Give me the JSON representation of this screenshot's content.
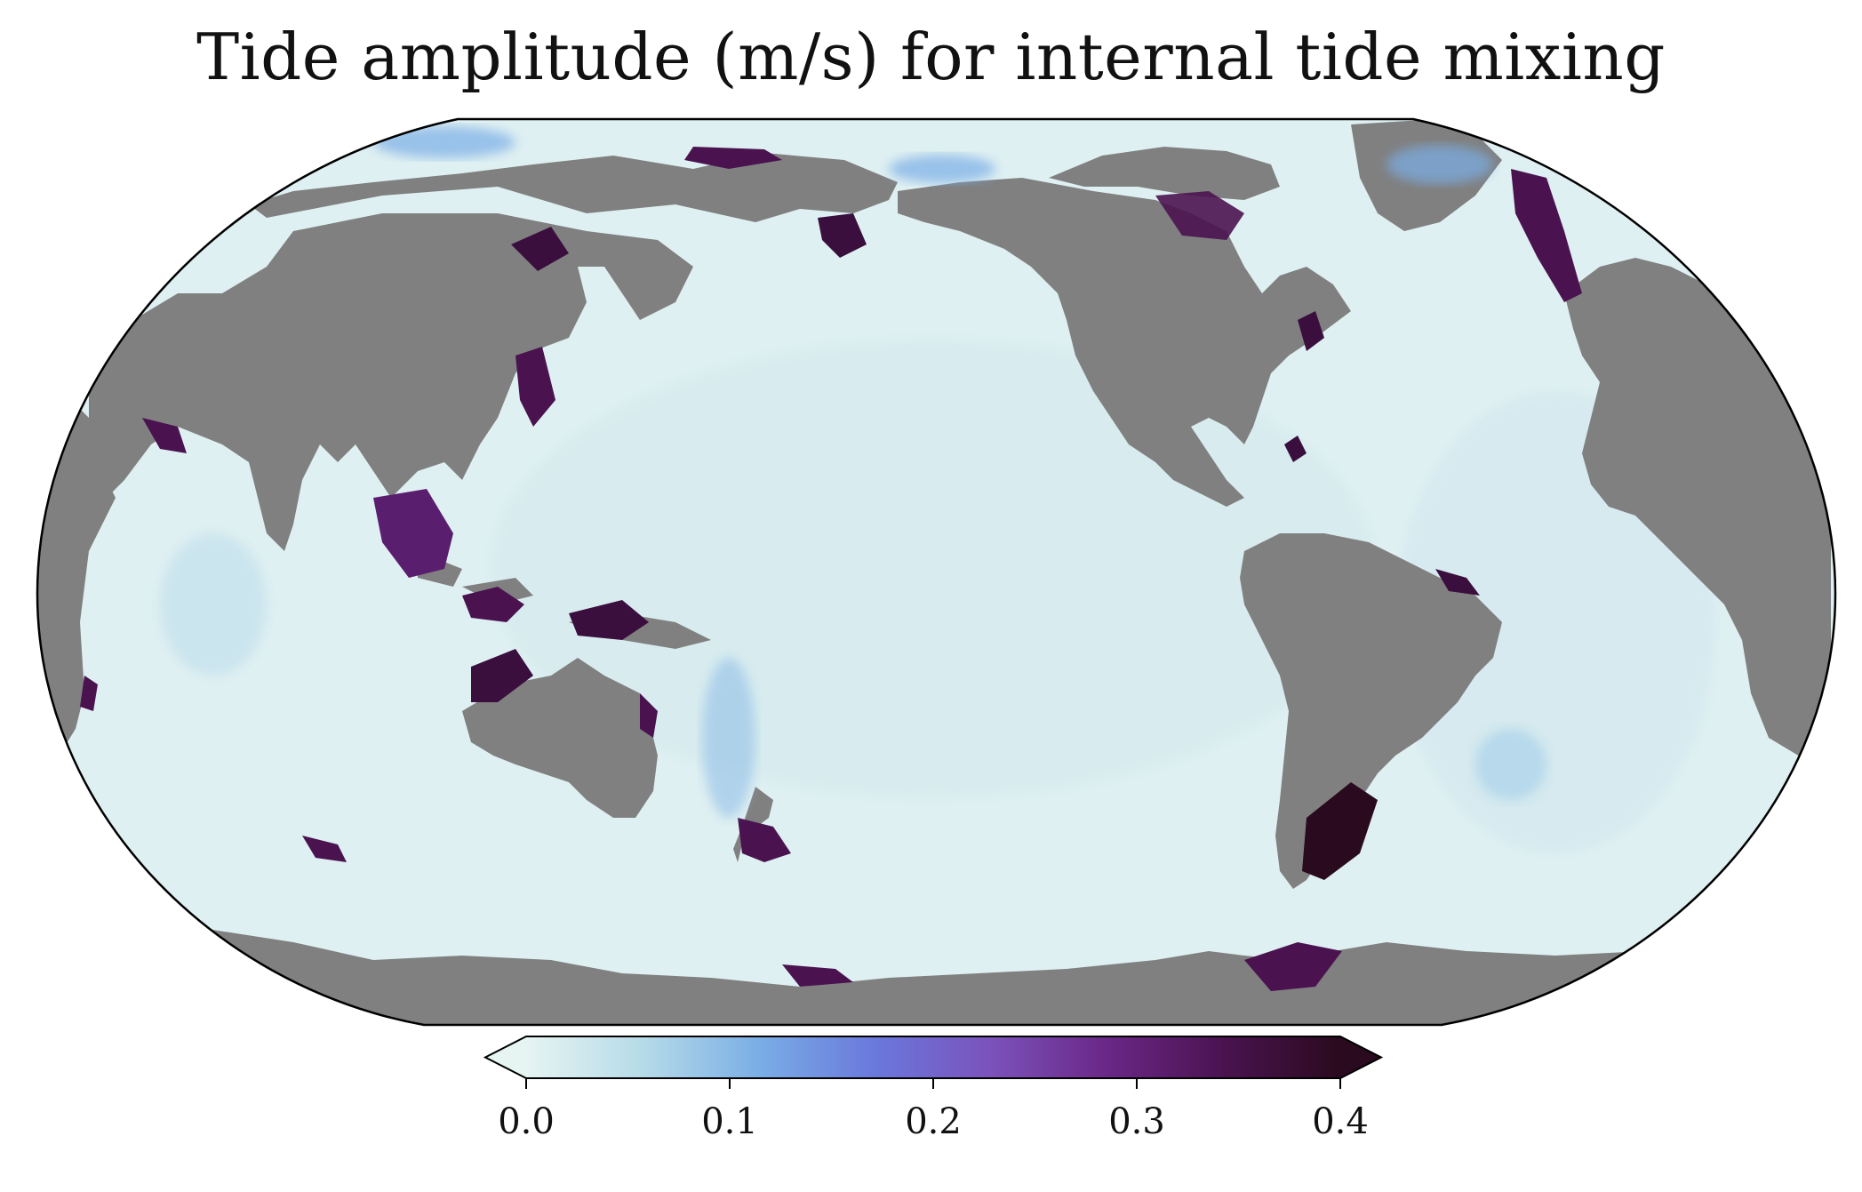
{
  "title": "Tide amplitude (m/s) for internal tide mixing",
  "colors": {
    "land": "#808080",
    "ocean_low": "#dff0f2",
    "ocean_mid": "#b8dbea",
    "cmap_stops": [
      "#e6f4f2",
      "#b6dbe8",
      "#7aaee6",
      "#6a78dc",
      "#7b52bb",
      "#6a2786",
      "#4a1350",
      "#2a0a1e"
    ],
    "outline": "#000000"
  },
  "colorbar": {
    "min": 0.0,
    "max": 0.4,
    "extend": "both",
    "ticks": [
      {
        "value": 0.0,
        "label": "0.0"
      },
      {
        "value": 0.1,
        "label": "0.1"
      },
      {
        "value": 0.2,
        "label": "0.2"
      },
      {
        "value": 0.3,
        "label": "0.3"
      },
      {
        "value": 0.4,
        "label": "0.4"
      }
    ]
  }
}
